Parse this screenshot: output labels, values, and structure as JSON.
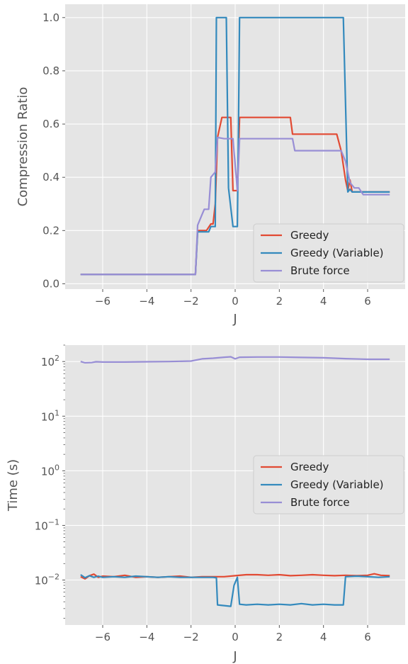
{
  "chart_data": [
    {
      "type": "line",
      "xlabel": "J",
      "ylabel": "Compression Ratio",
      "xlim": [
        -7.7,
        7.7
      ],
      "ylim": [
        -0.02,
        1.05
      ],
      "xticks": [
        -6,
        -4,
        -2,
        0,
        2,
        4,
        6
      ],
      "xtick_labels": [
        "−6",
        "−4",
        "−2",
        "0",
        "2",
        "4",
        "6"
      ],
      "yticks": [
        0.0,
        0.2,
        0.4,
        0.6,
        0.8,
        1.0
      ],
      "ytick_labels": [
        "0.0",
        "0.2",
        "0.4",
        "0.6",
        "0.8",
        "1.0"
      ],
      "grid": true,
      "legend_position": "lower-right",
      "series": [
        {
          "name": "Greedy",
          "color": "#E24A33",
          "x": [
            -7,
            -1.8,
            -1.7,
            -1.3,
            -1.1,
            -1.0,
            -0.9,
            -0.8,
            -0.6,
            -0.4,
            -0.2,
            -0.1,
            0.0,
            0.1,
            0.2,
            2.5,
            2.6,
            4.5,
            4.6,
            4.8,
            5.0,
            5.1,
            5.2,
            5.3,
            5.5,
            7
          ],
          "y": [
            0.035,
            0.035,
            0.2,
            0.2,
            0.225,
            0.225,
            0.3,
            0.55,
            0.625,
            0.625,
            0.625,
            0.35,
            0.35,
            0.35,
            0.625,
            0.625,
            0.562,
            0.562,
            0.562,
            0.5,
            0.39,
            0.35,
            0.39,
            0.345,
            0.345,
            0.345
          ]
        },
        {
          "name": "Greedy (Variable)",
          "color": "#348ABD",
          "x": [
            -7,
            -1.8,
            -1.7,
            -1.2,
            -1.1,
            -0.9,
            -0.85,
            -0.8,
            -0.4,
            -0.3,
            -0.1,
            0.1,
            0.15,
            0.2,
            4.9,
            5.1,
            5.2,
            5.3,
            7
          ],
          "y": [
            0.035,
            0.035,
            0.195,
            0.195,
            0.215,
            0.215,
            1.0,
            1.0,
            1.0,
            0.36,
            0.215,
            0.215,
            0.6,
            1.0,
            1.0,
            0.345,
            0.355,
            0.345,
            0.345
          ]
        },
        {
          "name": "Brute force",
          "color": "#988ED5",
          "x": [
            -7,
            -1.8,
            -1.7,
            -1.5,
            -1.4,
            -1.2,
            -1.1,
            -0.9,
            -0.8,
            -0.5,
            -0.3,
            -0.1,
            0.1,
            0.2,
            2.6,
            2.7,
            4.7,
            4.8,
            5.0,
            5.2,
            5.4,
            5.6,
            5.8,
            7
          ],
          "y": [
            0.035,
            0.035,
            0.22,
            0.26,
            0.28,
            0.28,
            0.4,
            0.42,
            0.55,
            0.545,
            0.545,
            0.545,
            0.35,
            0.545,
            0.545,
            0.5,
            0.5,
            0.5,
            0.46,
            0.38,
            0.36,
            0.36,
            0.335,
            0.335
          ]
        }
      ]
    },
    {
      "type": "line",
      "xlabel": "J",
      "ylabel": "Time (s)",
      "yscale": "log",
      "xlim": [
        -7.7,
        7.7
      ],
      "ylim": [
        0.0015,
        200
      ],
      "xticks": [
        -6,
        -4,
        -2,
        0,
        2,
        4,
        6
      ],
      "xtick_labels": [
        "−6",
        "−4",
        "−2",
        "0",
        "2",
        "4",
        "6"
      ],
      "yticks": [
        0.01,
        0.1,
        1,
        10,
        100
      ],
      "ytick_labels": [
        {
          "base": "10",
          "exp": "−2"
        },
        {
          "base": "10",
          "exp": "−1"
        },
        {
          "base": "10",
          "exp": "0"
        },
        {
          "base": "10",
          "exp": "1"
        },
        {
          "base": "10",
          "exp": "2"
        }
      ],
      "grid": true,
      "legend_position": "center-right",
      "series": [
        {
          "name": "Greedy",
          "color": "#E24A33",
          "x": [
            -7,
            -6.8,
            -6.6,
            -6.4,
            -6.2,
            -6,
            -5.5,
            -5,
            -4.5,
            -4,
            -3.5,
            -3,
            -2.5,
            -2,
            -1.5,
            -1,
            -0.5,
            0,
            0.5,
            1,
            1.5,
            2,
            2.5,
            3,
            3.5,
            4,
            4.5,
            5,
            5.5,
            6,
            6.3,
            6.6,
            7
          ],
          "y": [
            0.0115,
            0.0105,
            0.012,
            0.0128,
            0.0112,
            0.0118,
            0.0115,
            0.0122,
            0.0112,
            0.0115,
            0.0112,
            0.0115,
            0.0118,
            0.0112,
            0.0115,
            0.0115,
            0.0115,
            0.012,
            0.0125,
            0.0125,
            0.0122,
            0.0125,
            0.012,
            0.0122,
            0.0125,
            0.0122,
            0.012,
            0.0122,
            0.012,
            0.0122,
            0.013,
            0.0122,
            0.012
          ]
        },
        {
          "name": "Greedy (Variable)",
          "color": "#348ABD",
          "x": [
            -7,
            -6.8,
            -6.6,
            -6.4,
            -6.2,
            -6,
            -5.5,
            -5,
            -4.5,
            -4,
            -3.5,
            -3,
            -2.5,
            -2,
            -1.5,
            -1,
            -0.85,
            -0.8,
            -0.2,
            -0.05,
            0.1,
            0.2,
            0.5,
            1,
            1.5,
            2,
            2.5,
            3,
            3.5,
            4,
            4.5,
            4.9,
            5.0,
            5.5,
            6,
            6.5,
            7
          ],
          "y": [
            0.0125,
            0.011,
            0.012,
            0.0112,
            0.0118,
            0.0112,
            0.0115,
            0.0112,
            0.0118,
            0.0115,
            0.0112,
            0.0115,
            0.0112,
            0.0112,
            0.0112,
            0.0112,
            0.011,
            0.0035,
            0.0033,
            0.008,
            0.0112,
            0.0036,
            0.0035,
            0.0036,
            0.0035,
            0.0036,
            0.0035,
            0.0037,
            0.0035,
            0.0036,
            0.0035,
            0.0035,
            0.0115,
            0.0118,
            0.0115,
            0.0112,
            0.0115
          ]
        },
        {
          "name": "Brute force",
          "color": "#988ED5",
          "x": [
            -7,
            -6.8,
            -6.5,
            -6.3,
            -6,
            -5,
            -4,
            -3,
            -2,
            -1.5,
            -1,
            -0.5,
            -0.2,
            0,
            0.2,
            1,
            2,
            3,
            4,
            5,
            6,
            7
          ],
          "y": [
            100,
            95,
            96,
            99,
            98,
            98,
            99,
            100,
            102,
            112,
            115,
            120,
            122,
            112,
            120,
            121,
            121,
            119,
            117,
            113,
            110,
            110
          ]
        }
      ]
    }
  ]
}
